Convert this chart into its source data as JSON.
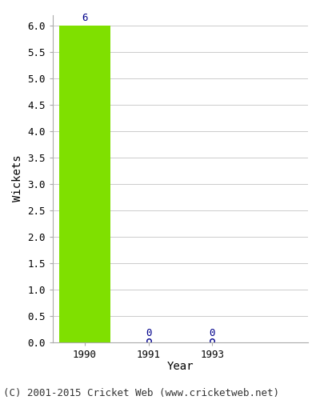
{
  "categories": [
    "1990",
    "1991",
    "1993"
  ],
  "values": [
    6,
    0,
    0
  ],
  "bar_color": "#7FE000",
  "label_color": "#00008B",
  "bar_width": 0.8,
  "ylim": [
    0,
    6.2
  ],
  "yticks": [
    0.0,
    0.5,
    1.0,
    1.5,
    2.0,
    2.5,
    3.0,
    3.5,
    4.0,
    4.5,
    5.0,
    5.5,
    6.0
  ],
  "ylabel": "Wickets",
  "xlabel": "Year",
  "background_color": "#ffffff",
  "plot_bg_color": "#ffffff",
  "footer": "(C) 2001-2015 Cricket Web (www.cricketweb.net)",
  "footer_fontsize": 9,
  "axis_label_fontsize": 10,
  "tick_fontsize": 9,
  "annotation_fontsize": 9,
  "zero_marker_size": 4,
  "zero_marker_color": "#00008B",
  "grid_color": "#cccccc",
  "font_family": "monospace"
}
